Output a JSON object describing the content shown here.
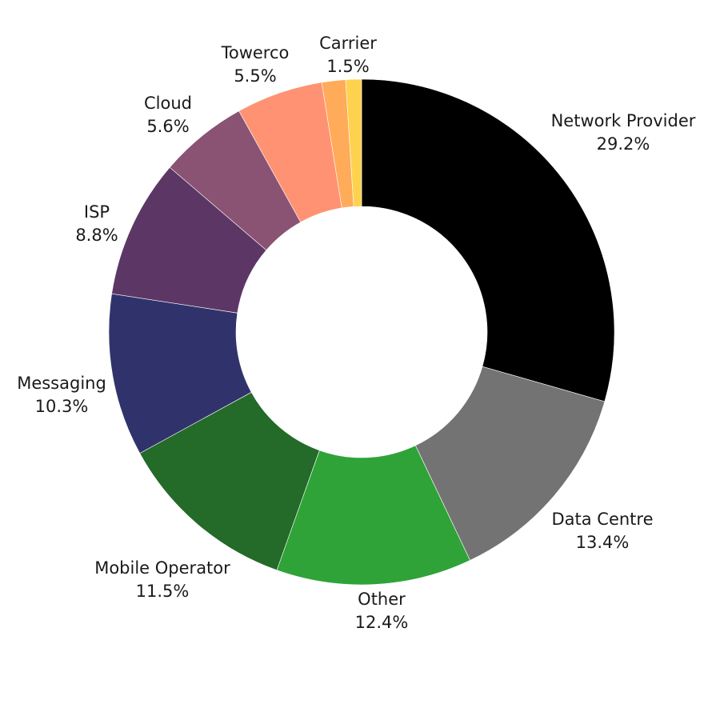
{
  "chart_data": {
    "type": "pie",
    "style": "donut",
    "title": "",
    "start": "12 o'clock",
    "direction": "clockwise",
    "categories": [
      "Network Provider",
      "Data Centre",
      "Other",
      "Mobile Operator",
      "Messaging",
      "ISP",
      "Cloud",
      "Towerco",
      "Carrier",
      ""
    ],
    "values": [
      29.2,
      13.4,
      12.4,
      11.5,
      10.3,
      8.8,
      5.6,
      5.5,
      1.5,
      1.0
    ],
    "value_labels": [
      "29.2%",
      "13.4%",
      "12.4%",
      "11.5%",
      "10.3%",
      "8.8%",
      "5.6%",
      "5.5%",
      "1.5%",
      ""
    ],
    "colors": [
      "#000000",
      "#737373",
      "#2fa337",
      "#246a29",
      "#30336b",
      "#5c3766",
      "#8a5273",
      "#ff9273",
      "#ffab59",
      "#ffd24d"
    ],
    "legend": "none"
  }
}
